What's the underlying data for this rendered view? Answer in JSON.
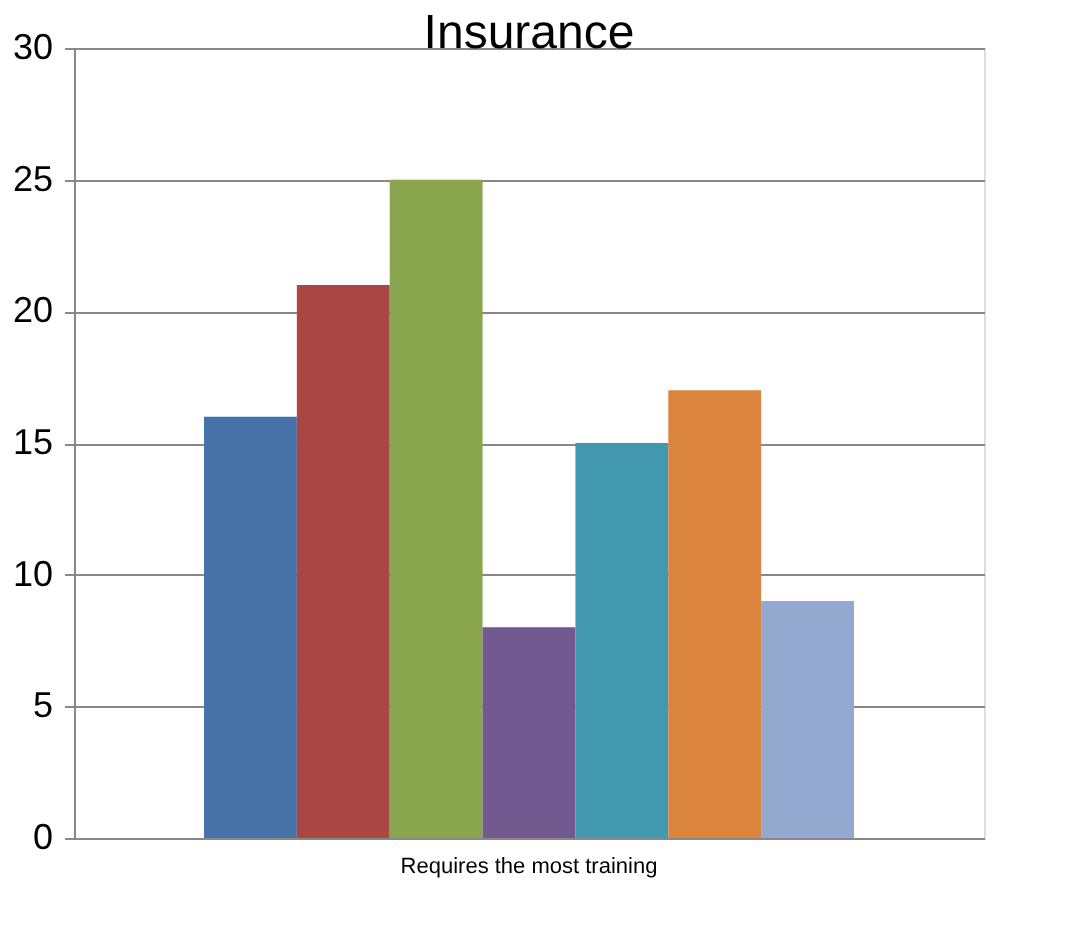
{
  "chart_data": {
    "type": "bar",
    "title": "Insurance",
    "categories": [
      "Requires the most training"
    ],
    "series": [
      {
        "color": "#4672a8",
        "values": [
          16
        ]
      },
      {
        "color": "#aa4644",
        "values": [
          21
        ]
      },
      {
        "color": "#89a54e",
        "values": [
          25
        ]
      },
      {
        "color": "#71588f",
        "values": [
          8
        ]
      },
      {
        "color": "#4198af",
        "values": [
          15
        ]
      },
      {
        "color": "#db843d",
        "values": [
          17
        ]
      },
      {
        "color": "#93a9cf",
        "values": [
          9
        ]
      }
    ],
    "ylim": [
      0,
      30
    ],
    "yticks": [
      0,
      5,
      10,
      15,
      20,
      25,
      30
    ],
    "grid": "y",
    "legend": false
  }
}
